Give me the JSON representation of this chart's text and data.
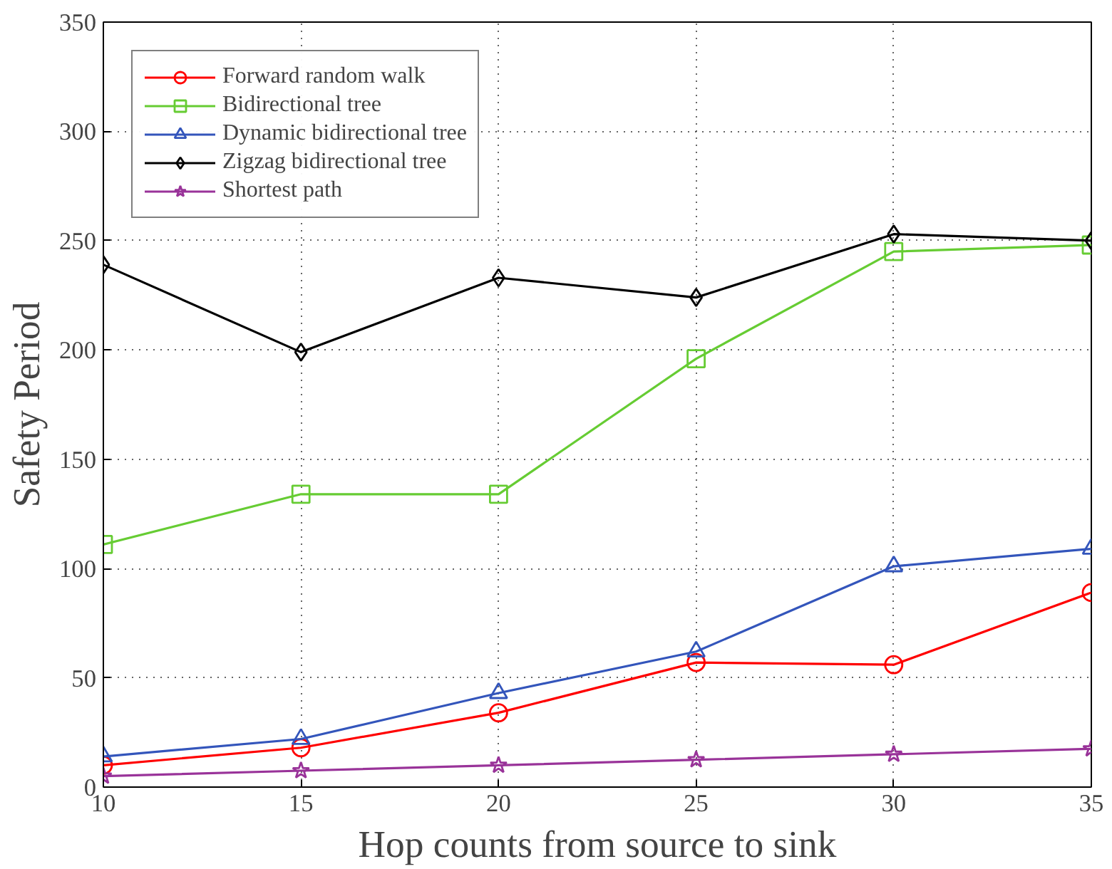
{
  "chart_data": {
    "type": "line",
    "xlabel": "Hop counts from source to sink",
    "ylabel": "Safety Period",
    "x": [
      10,
      15,
      20,
      25,
      30,
      35
    ],
    "xlim": [
      10,
      35
    ],
    "xticks": [
      10,
      15,
      20,
      25,
      30,
      35
    ],
    "ylim": [
      0,
      350
    ],
    "yticks": [
      0,
      50,
      100,
      150,
      200,
      250,
      300,
      350
    ],
    "grid": true,
    "legend": "top left",
    "line_style": "solid",
    "series": [
      {
        "name": "Forward random walk",
        "color": "#ff0000",
        "marker": "circle",
        "values": [
          10,
          18,
          34,
          57,
          56,
          89
        ]
      },
      {
        "name": "Bidirectional tree",
        "color": "#66cc33",
        "marker": "square",
        "values": [
          111,
          134,
          134,
          196,
          245,
          248
        ]
      },
      {
        "name": "Dynamic bidirectional tree",
        "color": "#3355bb",
        "marker": "triangle",
        "values": [
          14,
          22,
          43,
          62,
          101,
          109
        ]
      },
      {
        "name": "Zigzag bidirectional tree",
        "color": "#000000",
        "marker": "diamond",
        "values": [
          239,
          199,
          233,
          224,
          253,
          250
        ]
      },
      {
        "name": "Shortest path",
        "color": "#993399",
        "marker": "star",
        "values": [
          5,
          7.5,
          10,
          12.5,
          15,
          17.5
        ]
      }
    ]
  }
}
